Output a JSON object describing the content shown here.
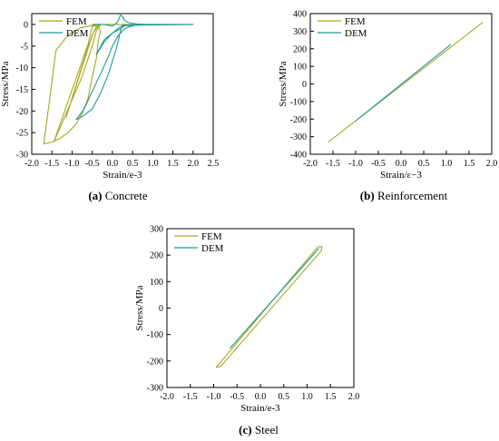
{
  "colors": {
    "fem": "#a7a820",
    "dem": "#1e9a9a"
  },
  "chart_data": [
    {
      "type": "line",
      "caption_label": "(a)",
      "caption_text": " Concrete",
      "xlabel": "Strain/e-3",
      "ylabel": "Stress/MPa",
      "xlim": [
        -2.0,
        2.5
      ],
      "ylim": [
        -30,
        2.5
      ],
      "xticks": [
        -2.0,
        -1.5,
        -1.0,
        -0.5,
        0.0,
        0.5,
        1.0,
        1.5,
        2.0,
        2.5
      ],
      "xtick_labels": [
        "-2.0",
        "-1.5",
        "-1.0",
        "-0.5",
        "0.0",
        "0.5",
        "1.0",
        "1.5",
        "2.0",
        "2.5"
      ],
      "yticks": [
        0,
        -5,
        -10,
        -15,
        -20,
        -25,
        -30
      ],
      "ytick_labels": [
        "0",
        "-5",
        "-10",
        "-15",
        "-20",
        "-25",
        "-30"
      ],
      "legend_position": "top-left",
      "series": [
        {
          "name": "FEM",
          "color_key": "fem",
          "x": [
            -0.05,
            -0.25,
            -0.5,
            -0.8,
            -1.1,
            -1.4,
            -1.7,
            -1.6,
            -1.5,
            -1.3,
            -1.1,
            -0.9,
            -0.75,
            -0.6,
            -0.5,
            -0.4,
            -0.35,
            -0.3,
            -0.35,
            -0.4,
            -0.5,
            -0.6,
            -1.45,
            -0.75,
            -0.5,
            -0.4,
            -0.3,
            -0.4,
            -0.5,
            -1.15,
            -0.6,
            -0.45,
            -0.35,
            -0.3,
            0.0,
            0.3,
            0.6,
            1.0,
            2.0
          ],
          "y": [
            0,
            0,
            -0.2,
            -0.8,
            -2.5,
            -6.0,
            -27.6,
            -27.4,
            -27.2,
            -26.3,
            -25.0,
            -23.0,
            -20.5,
            -17.0,
            -12.0,
            -8.0,
            -4.0,
            -1.5,
            -0.5,
            -0.2,
            -0.5,
            -4.5,
            -27.1,
            -12.0,
            -5.0,
            -1.5,
            -0.2,
            -0.5,
            -2.5,
            -21.5,
            -5.0,
            -1.5,
            -0.4,
            0.0,
            0.0,
            0.0,
            0.0,
            0.0,
            0.0
          ]
        },
        {
          "name": "DEM",
          "color_key": "dem",
          "x": [
            -0.5,
            -0.2,
            0.0,
            0.1,
            0.15,
            0.2,
            0.25,
            0.3,
            0.35,
            0.45,
            0.6,
            0.8,
            1.0,
            1.5,
            2.0,
            0.25,
            0.2,
            0.15,
            0.1,
            0.0,
            -0.1,
            -0.3,
            -0.5,
            -0.7,
            -0.9,
            -0.7,
            -0.5,
            -0.3,
            -0.1,
            0.0,
            0.15,
            0.3,
            0.5,
            0.7,
            1.0,
            0.3,
            0.2,
            0.0,
            -0.2,
            -0.4,
            -0.2,
            0.0,
            0.2,
            0.5
          ],
          "y": [
            0,
            0,
            -0.4,
            0.3,
            1.0,
            2.2,
            1.8,
            1.0,
            0.6,
            0.3,
            0.1,
            0.0,
            0.0,
            0.0,
            0.0,
            -0.2,
            -1.5,
            -3.5,
            -5.5,
            -8.5,
            -11.5,
            -16.0,
            -19.5,
            -21.0,
            -22.0,
            -19.5,
            -15.5,
            -11.5,
            -7.5,
            -5.0,
            -2.5,
            -1.0,
            -0.3,
            0.0,
            0.0,
            -0.3,
            -1.0,
            -2.0,
            -3.5,
            -7.0,
            -4.0,
            -2.0,
            -0.5,
            0.0
          ]
        }
      ]
    },
    {
      "type": "line",
      "caption_label": "(b)",
      "caption_text": " Reinforcement",
      "xlabel": "Strain/ε−3",
      "ylabel": "Stress/MPa",
      "xlim": [
        -2.0,
        2.0
      ],
      "ylim": [
        -400,
        400
      ],
      "xticks": [
        -2.0,
        -1.5,
        -1.0,
        -0.5,
        0.0,
        0.5,
        1.0,
        1.5,
        2.0
      ],
      "xtick_labels": [
        "-2.0",
        "-1.5",
        "-1.0",
        "-0.5",
        "0.0",
        "0.5",
        "1.0",
        "1.5",
        "2.0"
      ],
      "yticks": [
        400,
        300,
        200,
        100,
        0,
        -100,
        -200,
        -300,
        -400
      ],
      "ytick_labels": [
        "400",
        "300",
        "200",
        "100",
        "0",
        "-100",
        "-200",
        "-300",
        "-400"
      ],
      "legend_position": "top-left",
      "series": [
        {
          "name": "FEM",
          "color_key": "fem",
          "x": [
            -1.6,
            1.8
          ],
          "y": [
            -330,
            350
          ]
        },
        {
          "name": "DEM",
          "color_key": "dem",
          "x": [
            -1.0,
            1.1
          ],
          "y": [
            -210,
            225
          ]
        }
      ]
    },
    {
      "type": "line",
      "caption_label": "(c)",
      "caption_text": " Steel",
      "xlabel": "Strain/e-3",
      "ylabel": "Stress/MPa",
      "xlim": [
        -2.0,
        2.0
      ],
      "ylim": [
        -300,
        300
      ],
      "xticks": [
        -2.0,
        -1.5,
        -1.0,
        -0.5,
        0.0,
        0.5,
        1.0,
        1.5,
        2.0
      ],
      "xtick_labels": [
        "-2.0",
        "-1.5",
        "-1.0",
        "-0.5",
        "0.0",
        "0.5",
        "1.0",
        "1.5",
        "2.0"
      ],
      "yticks": [
        300,
        200,
        100,
        0,
        -100,
        -200,
        -300
      ],
      "ytick_labels": [
        "300",
        "200",
        "100",
        "0",
        "-100",
        "-200",
        "-300"
      ],
      "legend_position": "top-left",
      "series": [
        {
          "name": "FEM",
          "color_key": "fem",
          "x": [
            -0.95,
            1.2,
            1.25,
            1.32,
            1.3,
            -0.85,
            -0.95
          ],
          "y": [
            -225,
            225,
            232,
            232,
            215,
            -220,
            -225
          ]
        },
        {
          "name": "DEM",
          "color_key": "dem",
          "x": [
            -0.65,
            1.25
          ],
          "y": [
            -152,
            225
          ]
        }
      ]
    }
  ]
}
